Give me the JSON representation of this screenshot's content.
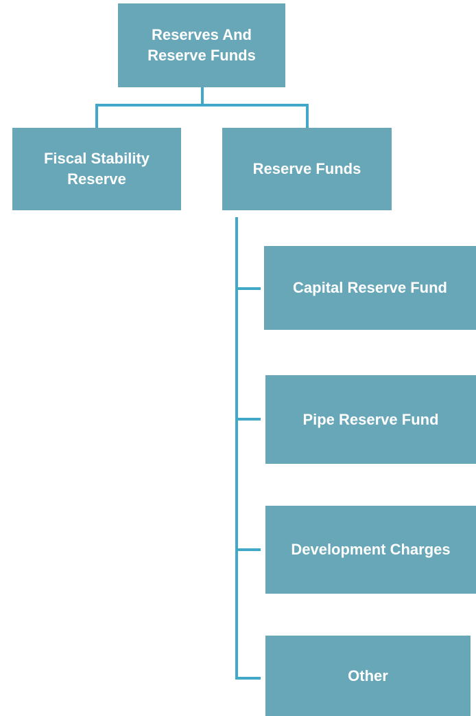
{
  "nodes": [
    {
      "label": "Reserves And Reserve Funds"
    },
    {
      "label": "Fiscal Stability Reserve"
    },
    {
      "label": "Reserve Funds"
    },
    {
      "label": "Capital Reserve Fund"
    },
    {
      "label": "Pipe Reserve Fund"
    },
    {
      "label": "Development Charges"
    },
    {
      "label": "Other"
    }
  ]
}
